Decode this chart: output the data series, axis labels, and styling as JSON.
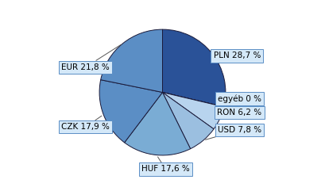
{
  "labels": [
    "PLN 28,7 %",
    "egyéb 0 %",
    "RON 6,2 %",
    "USD 7,8 %",
    "HUF 17,6 %",
    "CZK 17,9 %",
    "EUR 21,8 %"
  ],
  "values": [
    28.7,
    0.001,
    6.2,
    7.8,
    17.6,
    17.9,
    21.8
  ],
  "colors": [
    "#2a5298",
    "#b8d4ee",
    "#b8d4ee",
    "#9bbfe0",
    "#7aacd4",
    "#5b8ec5",
    "#5b8ec5"
  ],
  "startangle": 90,
  "background_color": "#ffffff",
  "label_fontsize": 7.5,
  "label_box_color": "#d4e8f8",
  "label_box_edge": "#5b8ec5",
  "wedge_edge_color": "#1a1a3a",
  "wedge_edge_width": 0.7
}
